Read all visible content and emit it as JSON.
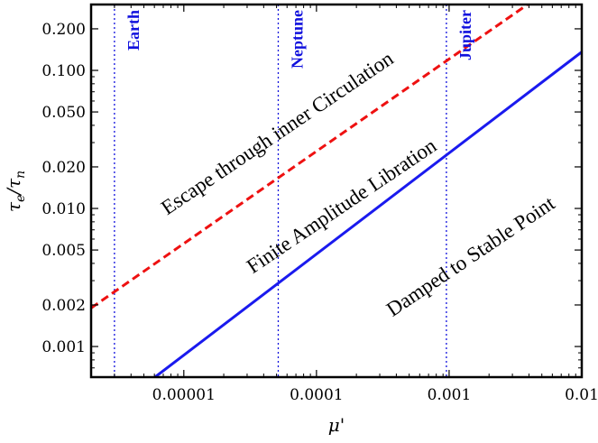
{
  "chart_data": {
    "type": "line",
    "xlabel": "μ'",
    "ylabel_main": "τ",
    "ylabel_sub_e": "e",
    "ylabel_slash": "/τ",
    "ylabel_sub_n": "n",
    "x_scale": "log",
    "y_scale": "log",
    "xlim": [
      2e-06,
      0.01
    ],
    "ylim": [
      0.0006,
      0.3
    ],
    "x_ticks": [
      {
        "value": 1e-05,
        "label": "0.00001"
      },
      {
        "value": 0.0001,
        "label": "0.0001"
      },
      {
        "value": 0.001,
        "label": "0.001"
      },
      {
        "value": 0.01,
        "label": "0.01"
      }
    ],
    "y_ticks": [
      {
        "value": 0.001,
        "label": "0.001"
      },
      {
        "value": 0.002,
        "label": "0.002"
      },
      {
        "value": 0.005,
        "label": "0.005"
      },
      {
        "value": 0.01,
        "label": "0.010"
      },
      {
        "value": 0.02,
        "label": "0.020"
      },
      {
        "value": 0.05,
        "label": "0.050"
      },
      {
        "value": 0.1,
        "label": "0.100"
      },
      {
        "value": 0.2,
        "label": "0.200"
      }
    ],
    "series": [
      {
        "color": "#1a1aee",
        "dash": "solid",
        "x": [
          6.06e-06,
          0.01
        ],
        "y": [
          0.0006,
          0.136
        ]
      },
      {
        "color": "#ee1111",
        "dash": "dashed",
        "x": [
          2e-06,
          0.0039
        ],
        "y": [
          0.0019,
          0.3
        ]
      }
    ],
    "vlines": [
      {
        "x": 3e-06,
        "label": "Earth",
        "color": "#1010dd"
      },
      {
        "x": 5.15e-05,
        "label": "Neptune",
        "color": "#1010dd"
      },
      {
        "x": 0.000954,
        "label": "Jupiter",
        "color": "#1010dd"
      }
    ],
    "regions": [
      {
        "label": "Escape through inner Circulation",
        "x": 5.4e-05,
        "y": 0.032,
        "angle": -34
      },
      {
        "label": "Finite Amplitude Libration",
        "x": 0.000165,
        "y": 0.0095,
        "angle": -34
      },
      {
        "label": "Damped to Stable Point",
        "x": 0.00155,
        "y": 0.0041,
        "angle": -34
      }
    ]
  }
}
